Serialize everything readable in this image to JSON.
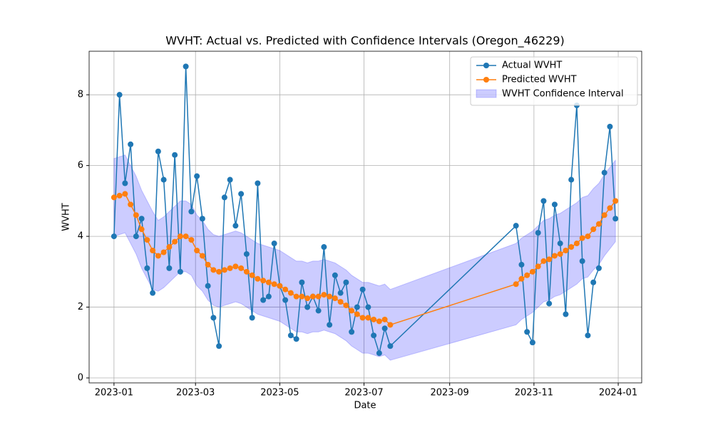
{
  "chart_data": {
    "type": "line",
    "title": "WVHT: Actual vs. Predicted with Confidence Intervals (Oregon_46229)",
    "xlabel": "Date",
    "ylabel": "WVHT",
    "x": [
      "2023-01-01",
      "2023-01-05",
      "2023-01-09",
      "2023-01-13",
      "2023-01-17",
      "2023-01-21",
      "2023-01-25",
      "2023-01-29",
      "2023-02-02",
      "2023-02-06",
      "2023-02-10",
      "2023-02-14",
      "2023-02-18",
      "2023-02-22",
      "2023-02-26",
      "2023-03-02",
      "2023-03-06",
      "2023-03-10",
      "2023-03-14",
      "2023-03-18",
      "2023-03-22",
      "2023-03-26",
      "2023-03-30",
      "2023-04-03",
      "2023-04-07",
      "2023-04-11",
      "2023-04-15",
      "2023-04-19",
      "2023-04-23",
      "2023-04-27",
      "2023-05-01",
      "2023-05-05",
      "2023-05-09",
      "2023-05-13",
      "2023-05-17",
      "2023-05-21",
      "2023-05-25",
      "2023-05-29",
      "2023-06-02",
      "2023-06-06",
      "2023-06-10",
      "2023-06-14",
      "2023-06-18",
      "2023-06-22",
      "2023-06-26",
      "2023-06-30",
      "2023-07-04",
      "2023-07-08",
      "2023-07-12",
      "2023-07-16",
      "2023-07-20",
      "2023-10-19",
      "2023-10-23",
      "2023-10-27",
      "2023-10-31",
      "2023-11-04",
      "2023-11-08",
      "2023-11-12",
      "2023-11-16",
      "2023-11-20",
      "2023-11-24",
      "2023-11-28",
      "2023-12-02",
      "2023-12-06",
      "2023-12-10",
      "2023-12-14",
      "2023-12-18",
      "2023-12-22",
      "2023-12-26",
      "2023-12-30"
    ],
    "series": [
      {
        "name": "Actual WVHT",
        "color": "#1f77b4",
        "values": [
          4.0,
          8.0,
          5.5,
          6.6,
          4.0,
          4.5,
          3.1,
          2.4,
          6.4,
          5.6,
          3.1,
          6.3,
          3.0,
          8.8,
          4.7,
          5.7,
          4.5,
          2.6,
          1.7,
          0.9,
          5.1,
          5.6,
          4.3,
          5.2,
          3.5,
          1.7,
          5.5,
          2.2,
          2.3,
          3.8,
          2.6,
          2.2,
          1.2,
          1.1,
          2.7,
          2.0,
          2.3,
          1.9,
          3.7,
          1.5,
          2.9,
          2.4,
          2.7,
          1.3,
          2.0,
          2.5,
          2.0,
          1.2,
          0.7,
          1.4,
          0.9,
          4.3,
          3.2,
          1.3,
          1.0,
          4.1,
          5.0,
          2.1,
          4.9,
          3.8,
          1.8,
          5.6,
          7.7,
          3.3,
          1.2,
          2.7,
          3.1,
          5.8,
          7.1,
          4.5
        ]
      },
      {
        "name": "Predicted WVHT",
        "color": "#ff7f0e",
        "values": [
          5.1,
          5.15,
          5.2,
          4.9,
          4.6,
          4.2,
          3.9,
          3.6,
          3.45,
          3.55,
          3.7,
          3.85,
          4.0,
          4.0,
          3.9,
          3.6,
          3.45,
          3.2,
          3.05,
          3.0,
          3.05,
          3.1,
          3.15,
          3.1,
          3.0,
          2.9,
          2.8,
          2.75,
          2.7,
          2.65,
          2.6,
          2.5,
          2.4,
          2.3,
          2.3,
          2.25,
          2.3,
          2.3,
          2.35,
          2.3,
          2.25,
          2.15,
          2.05,
          1.9,
          1.8,
          1.7,
          1.7,
          1.65,
          1.6,
          1.65,
          1.5,
          2.65,
          2.8,
          2.9,
          3.0,
          3.15,
          3.3,
          3.35,
          3.45,
          3.5,
          3.6,
          3.7,
          3.8,
          3.95,
          4.0,
          4.2,
          4.35,
          4.6,
          4.8,
          5.0
        ]
      }
    ],
    "interval": {
      "name": "WVHT Confidence Interval",
      "color": "#0000ff",
      "lower": [
        4.0,
        4.05,
        4.1,
        3.8,
        3.5,
        3.1,
        2.8,
        2.5,
        2.45,
        2.55,
        2.7,
        2.85,
        3.0,
        3.0,
        2.9,
        2.6,
        2.45,
        2.2,
        2.05,
        2.0,
        2.05,
        2.1,
        2.15,
        2.1,
        2.0,
        1.9,
        1.8,
        1.75,
        1.7,
        1.65,
        1.6,
        1.5,
        1.4,
        1.3,
        1.3,
        1.25,
        1.3,
        1.3,
        1.35,
        1.3,
        1.25,
        1.15,
        1.05,
        0.9,
        0.8,
        0.7,
        0.7,
        0.65,
        0.6,
        0.65,
        0.5,
        1.5,
        1.65,
        1.75,
        1.85,
        2.0,
        2.15,
        2.2,
        2.3,
        2.35,
        2.45,
        2.55,
        2.65,
        2.8,
        2.85,
        3.05,
        3.2,
        3.45,
        3.65,
        3.85
      ],
      "upper": [
        6.2,
        6.25,
        6.3,
        6.0,
        5.7,
        5.3,
        5.0,
        4.7,
        4.45,
        4.55,
        4.7,
        4.85,
        5.0,
        5.0,
        4.9,
        4.6,
        4.45,
        4.2,
        4.05,
        4.0,
        4.05,
        4.1,
        4.15,
        4.1,
        4.0,
        3.9,
        3.8,
        3.75,
        3.7,
        3.65,
        3.6,
        3.5,
        3.4,
        3.3,
        3.3,
        3.25,
        3.3,
        3.3,
        3.35,
        3.3,
        3.25,
        3.15,
        3.05,
        2.9,
        2.8,
        2.7,
        2.7,
        2.65,
        2.6,
        2.65,
        2.5,
        3.8,
        3.95,
        4.05,
        4.15,
        4.3,
        4.45,
        4.5,
        4.6,
        4.65,
        4.75,
        4.85,
        4.95,
        5.1,
        5.15,
        5.35,
        5.5,
        5.75,
        5.95,
        6.15
      ]
    },
    "xlim": [
      "2022-12-14",
      "2024-01-18"
    ],
    "xticks": [
      "2023-01",
      "2023-03",
      "2023-05",
      "2023-07",
      "2023-09",
      "2023-11",
      "2024-01"
    ],
    "ylim": [
      -0.14,
      9.23
    ],
    "yticks": [
      0,
      2,
      4,
      6,
      8
    ],
    "grid": true,
    "legend": "upper right"
  }
}
